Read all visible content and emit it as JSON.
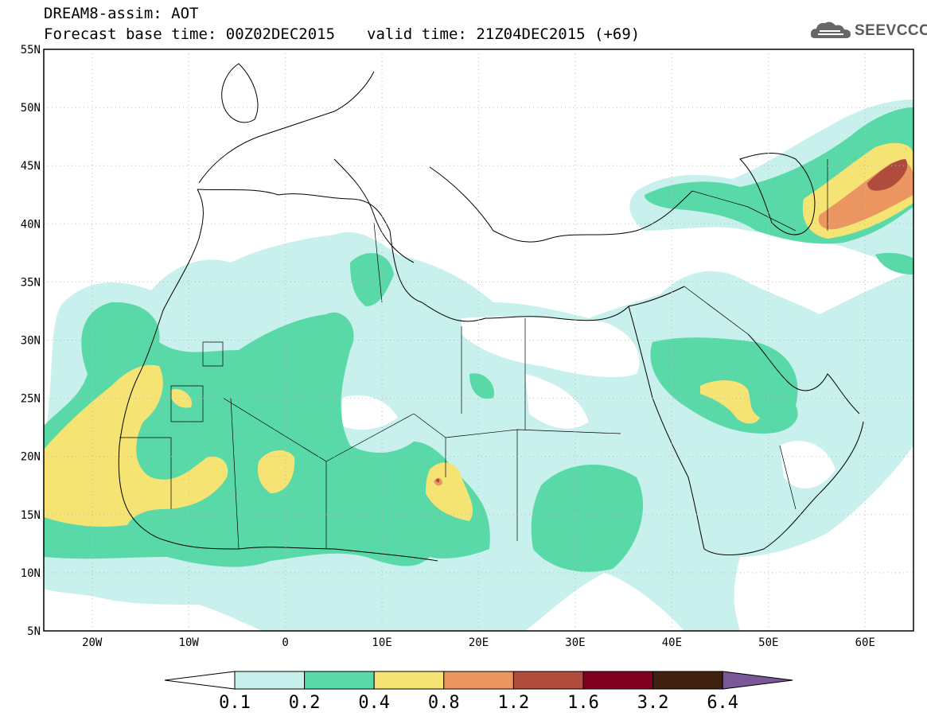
{
  "header": {
    "title": "DREAM8-assim: AOT",
    "base_time": "Forecast base time: 00Z02DEC2015",
    "valid_time": "valid time: 21Z04DEC2015 (+69)"
  },
  "logo": {
    "text": "SEEVCCC",
    "icon": "cloud-icon"
  },
  "map": {
    "lat_labels": [
      "55N",
      "50N",
      "45N",
      "40N",
      "35N",
      "30N",
      "25N",
      "20N",
      "15N",
      "10N",
      "5N"
    ],
    "lon_labels": [
      "20W",
      "10W",
      "0",
      "10E",
      "20E",
      "30E",
      "40E",
      "50E",
      "60E"
    ],
    "lon_range": [
      -25,
      65
    ],
    "lat_range": [
      5,
      55
    ],
    "grid": "dotted"
  },
  "colorbar": {
    "ticks": [
      "0.1",
      "0.2",
      "0.4",
      "0.8",
      "1.2",
      "1.6",
      "3.2",
      "6.4"
    ],
    "colors": [
      "#c8f0ec",
      "#5ad9a8",
      "#f5e374",
      "#eb9560",
      "#b04c3c",
      "#800022",
      "#402010",
      "#7a5898"
    ],
    "under_color": "#ffffff"
  }
}
